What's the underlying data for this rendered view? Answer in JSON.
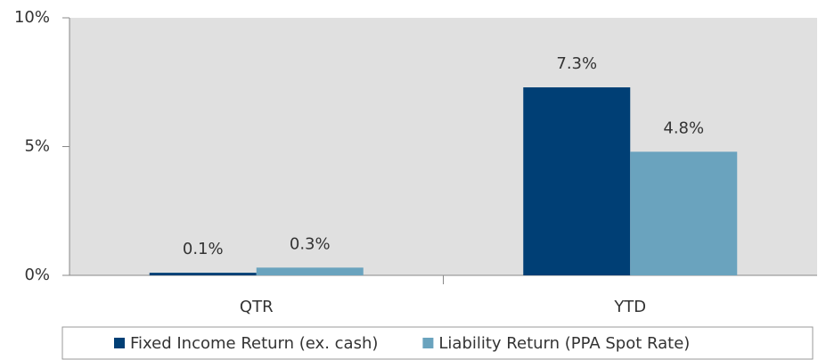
{
  "chart_data": {
    "type": "bar",
    "categories": [
      "QTR",
      "YTD"
    ],
    "series": [
      {
        "name": "Fixed Income Return (ex. cash)",
        "color": "#003f75",
        "values": [
          0.1,
          7.3
        ],
        "value_labels": [
          "0.1%",
          "7.3%"
        ]
      },
      {
        "name": "Liability Return (PPA Spot Rate)",
        "color": "#6aa3be",
        "values": [
          0.3,
          4.8
        ],
        "value_labels": [
          "0.3%",
          "4.8%"
        ]
      }
    ],
    "ylim": [
      0,
      10
    ],
    "yticks": [
      {
        "value": 0,
        "label": "0%"
      },
      {
        "value": 5,
        "label": "5%"
      },
      {
        "value": 10,
        "label": "10%"
      }
    ],
    "plot_background": "#e0e0e0",
    "legend": "bottom"
  }
}
